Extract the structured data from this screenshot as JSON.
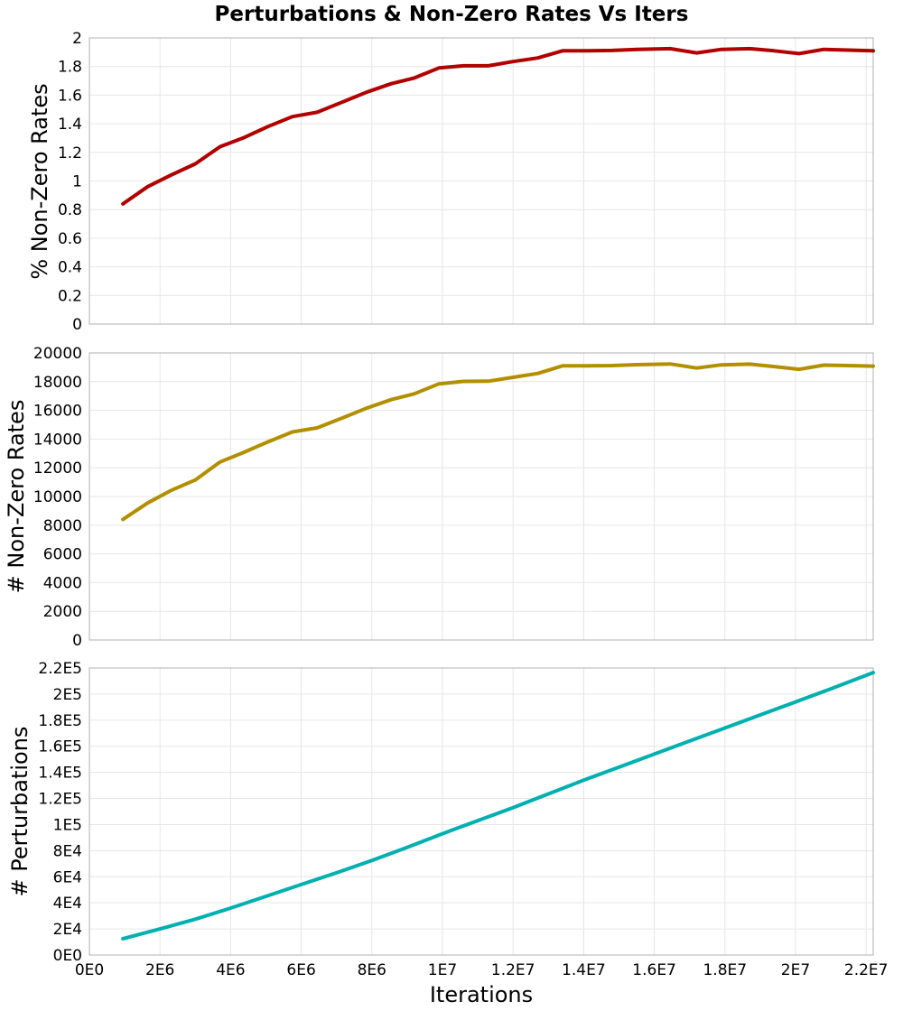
{
  "title": "Perturbations & Non-Zero Rates Vs Iters",
  "colors": {
    "pct_nonzero": "#b20000",
    "num_nonzero": "#b38f00",
    "perturbations": "#00b0b0"
  },
  "chart_data": [
    {
      "type": "line",
      "ylabel": "% Non-Zero Rates",
      "xlim": [
        0,
        22200000
      ],
      "ylim": [
        0,
        2
      ],
      "xticks": [
        0,
        2000000,
        4000000,
        6000000,
        8000000,
        10000000,
        12000000,
        14000000,
        16000000,
        18000000,
        20000000,
        22000000
      ],
      "yticks": [
        0,
        0.2,
        0.4,
        0.6,
        0.8,
        1,
        1.2,
        1.4,
        1.6,
        1.8,
        2
      ],
      "ytick_labels": [
        "0",
        "0.2",
        "0.4",
        "0.6",
        "0.8",
        "1",
        "1.2",
        "1.4",
        "1.6",
        "1.8",
        "2"
      ],
      "grid": true,
      "series": [
        {
          "x": [
            950000,
            1650000,
            2300000,
            3000000,
            3700000,
            4350000,
            5050000,
            5750000,
            6450000,
            7150000,
            7850000,
            8550000,
            9200000,
            9900000,
            10600000,
            11300000,
            12000000,
            12700000,
            13400000,
            14100000,
            14800000,
            15500000,
            16450000,
            17200000,
            17900000,
            18700000,
            19400000,
            20100000,
            20800000,
            21500000,
            22200000
          ],
          "values": [
            0.84,
            0.96,
            1.04,
            1.12,
            1.24,
            1.3,
            1.38,
            1.45,
            1.48,
            1.55,
            1.62,
            1.68,
            1.72,
            1.79,
            1.805,
            1.805,
            1.835,
            1.86,
            1.91,
            1.91,
            1.912,
            1.92,
            1.925,
            1.895,
            1.92,
            1.925,
            1.91,
            1.89,
            1.92,
            1.915,
            1.91
          ]
        }
      ]
    },
    {
      "type": "line",
      "ylabel": "# Non-Zero Rates",
      "xlim": [
        0,
        22200000
      ],
      "ylim": [
        0,
        20000
      ],
      "xticks": [
        0,
        2000000,
        4000000,
        6000000,
        8000000,
        10000000,
        12000000,
        14000000,
        16000000,
        18000000,
        20000000,
        22000000
      ],
      "yticks": [
        0,
        2000,
        4000,
        6000,
        8000,
        10000,
        12000,
        14000,
        16000,
        18000,
        20000
      ],
      "ytick_labels": [
        "0",
        "2000",
        "4000",
        "6000",
        "8000",
        "10000",
        "12000",
        "14000",
        "16000",
        "18000",
        "20000"
      ],
      "grid": true,
      "series": [
        {
          "x": [
            950000,
            1650000,
            2300000,
            3000000,
            3700000,
            4350000,
            5050000,
            5750000,
            6450000,
            7150000,
            7850000,
            8550000,
            9200000,
            9900000,
            10600000,
            11300000,
            12000000,
            12700000,
            13400000,
            14100000,
            14800000,
            15500000,
            16450000,
            17200000,
            17900000,
            18700000,
            19400000,
            20100000,
            20800000,
            21500000,
            22200000
          ],
          "values": [
            8400,
            9550,
            10400,
            11150,
            12400,
            13050,
            13800,
            14500,
            14780,
            15450,
            16150,
            16750,
            17150,
            17850,
            18020,
            18030,
            18300,
            18570,
            19100,
            19110,
            19120,
            19180,
            19230,
            18950,
            19170,
            19220,
            19050,
            18860,
            19150,
            19120,
            19080
          ]
        }
      ]
    },
    {
      "type": "line",
      "ylabel": "# Perturbations",
      "xlabel": "Iterations",
      "xlim": [
        0,
        22200000
      ],
      "ylim": [
        0,
        220000
      ],
      "xticks": [
        0,
        2000000,
        4000000,
        6000000,
        8000000,
        10000000,
        12000000,
        14000000,
        16000000,
        18000000,
        20000000,
        22000000
      ],
      "xtick_labels": [
        "0E0",
        "2E6",
        "4E6",
        "6E6",
        "8E6",
        "1E7",
        "1.2E7",
        "1.4E7",
        "1.6E7",
        "1.8E7",
        "2E7",
        "2.2E7"
      ],
      "yticks": [
        0,
        20000,
        40000,
        60000,
        80000,
        100000,
        120000,
        140000,
        160000,
        180000,
        200000,
        220000
      ],
      "ytick_labels": [
        "0E0",
        "2E4",
        "4E4",
        "6E4",
        "8E4",
        "1E5",
        "1.2E5",
        "1.4E5",
        "1.6E5",
        "1.8E5",
        "2E5",
        "2.2E5"
      ],
      "grid": true,
      "series": [
        {
          "x": [
            950000,
            2000000,
            3000000,
            4000000,
            5000000,
            6000000,
            7000000,
            8000000,
            9000000,
            10000000,
            11000000,
            12000000,
            13000000,
            14000000,
            15000000,
            16000000,
            17000000,
            18000000,
            19000000,
            20000000,
            21000000,
            22200000
          ],
          "values": [
            12500,
            20000,
            27500,
            36000,
            45000,
            54000,
            63000,
            72500,
            82500,
            93000,
            103000,
            113000,
            123500,
            134000,
            144000,
            154000,
            164000,
            174000,
            184000,
            194000,
            204000,
            216500
          ]
        }
      ]
    }
  ]
}
